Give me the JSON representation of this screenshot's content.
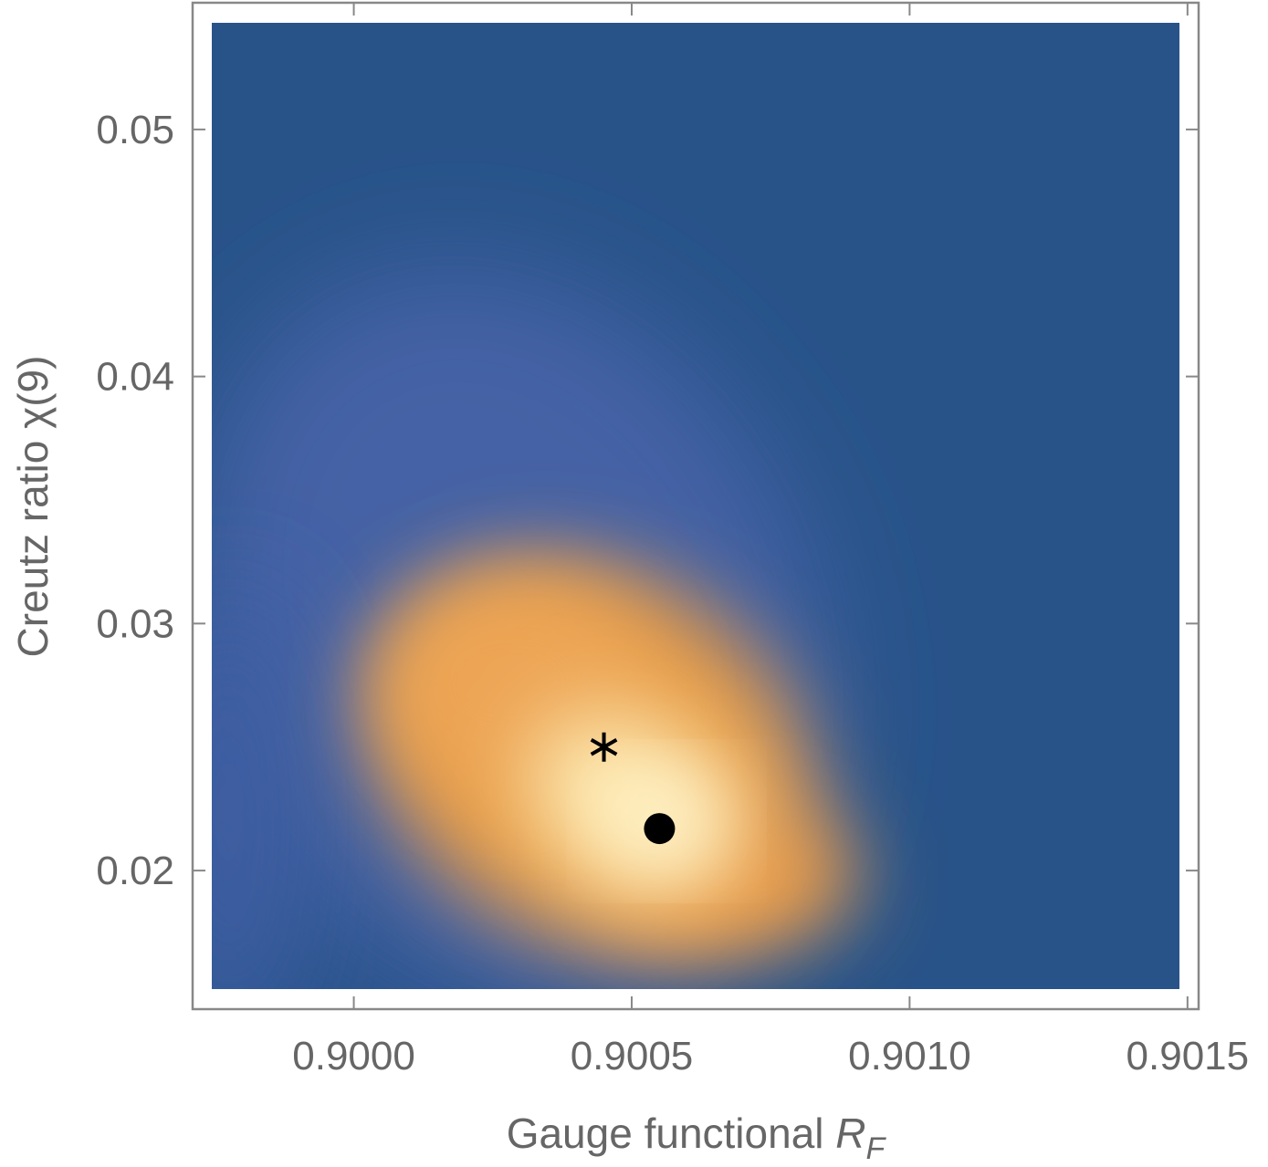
{
  "chart_data": {
    "type": "density",
    "x_label": "Gauge functional",
    "x_label_symbol": "R",
    "x_label_subscript": "F",
    "y_label": "Creutz ratio χ(9)",
    "xlim": [
      0.89971,
      0.90152
    ],
    "ylim": [
      0.01439,
      0.05513
    ],
    "xticks": [
      {
        "value": 0.9,
        "label": "0.9000"
      },
      {
        "value": 0.9005,
        "label": "0.9005"
      },
      {
        "value": 0.901,
        "label": "0.9010"
      },
      {
        "value": 0.9015,
        "label": "0.9015"
      }
    ],
    "yticks": [
      0.02,
      0.03,
      0.04,
      0.05
    ],
    "points": [
      {
        "x": 0.90045,
        "y": 0.025,
        "marker": "star",
        "color": "#000000"
      },
      {
        "x": 0.90055,
        "y": 0.0217,
        "marker": "dot",
        "color": "#000000"
      }
    ]
  }
}
